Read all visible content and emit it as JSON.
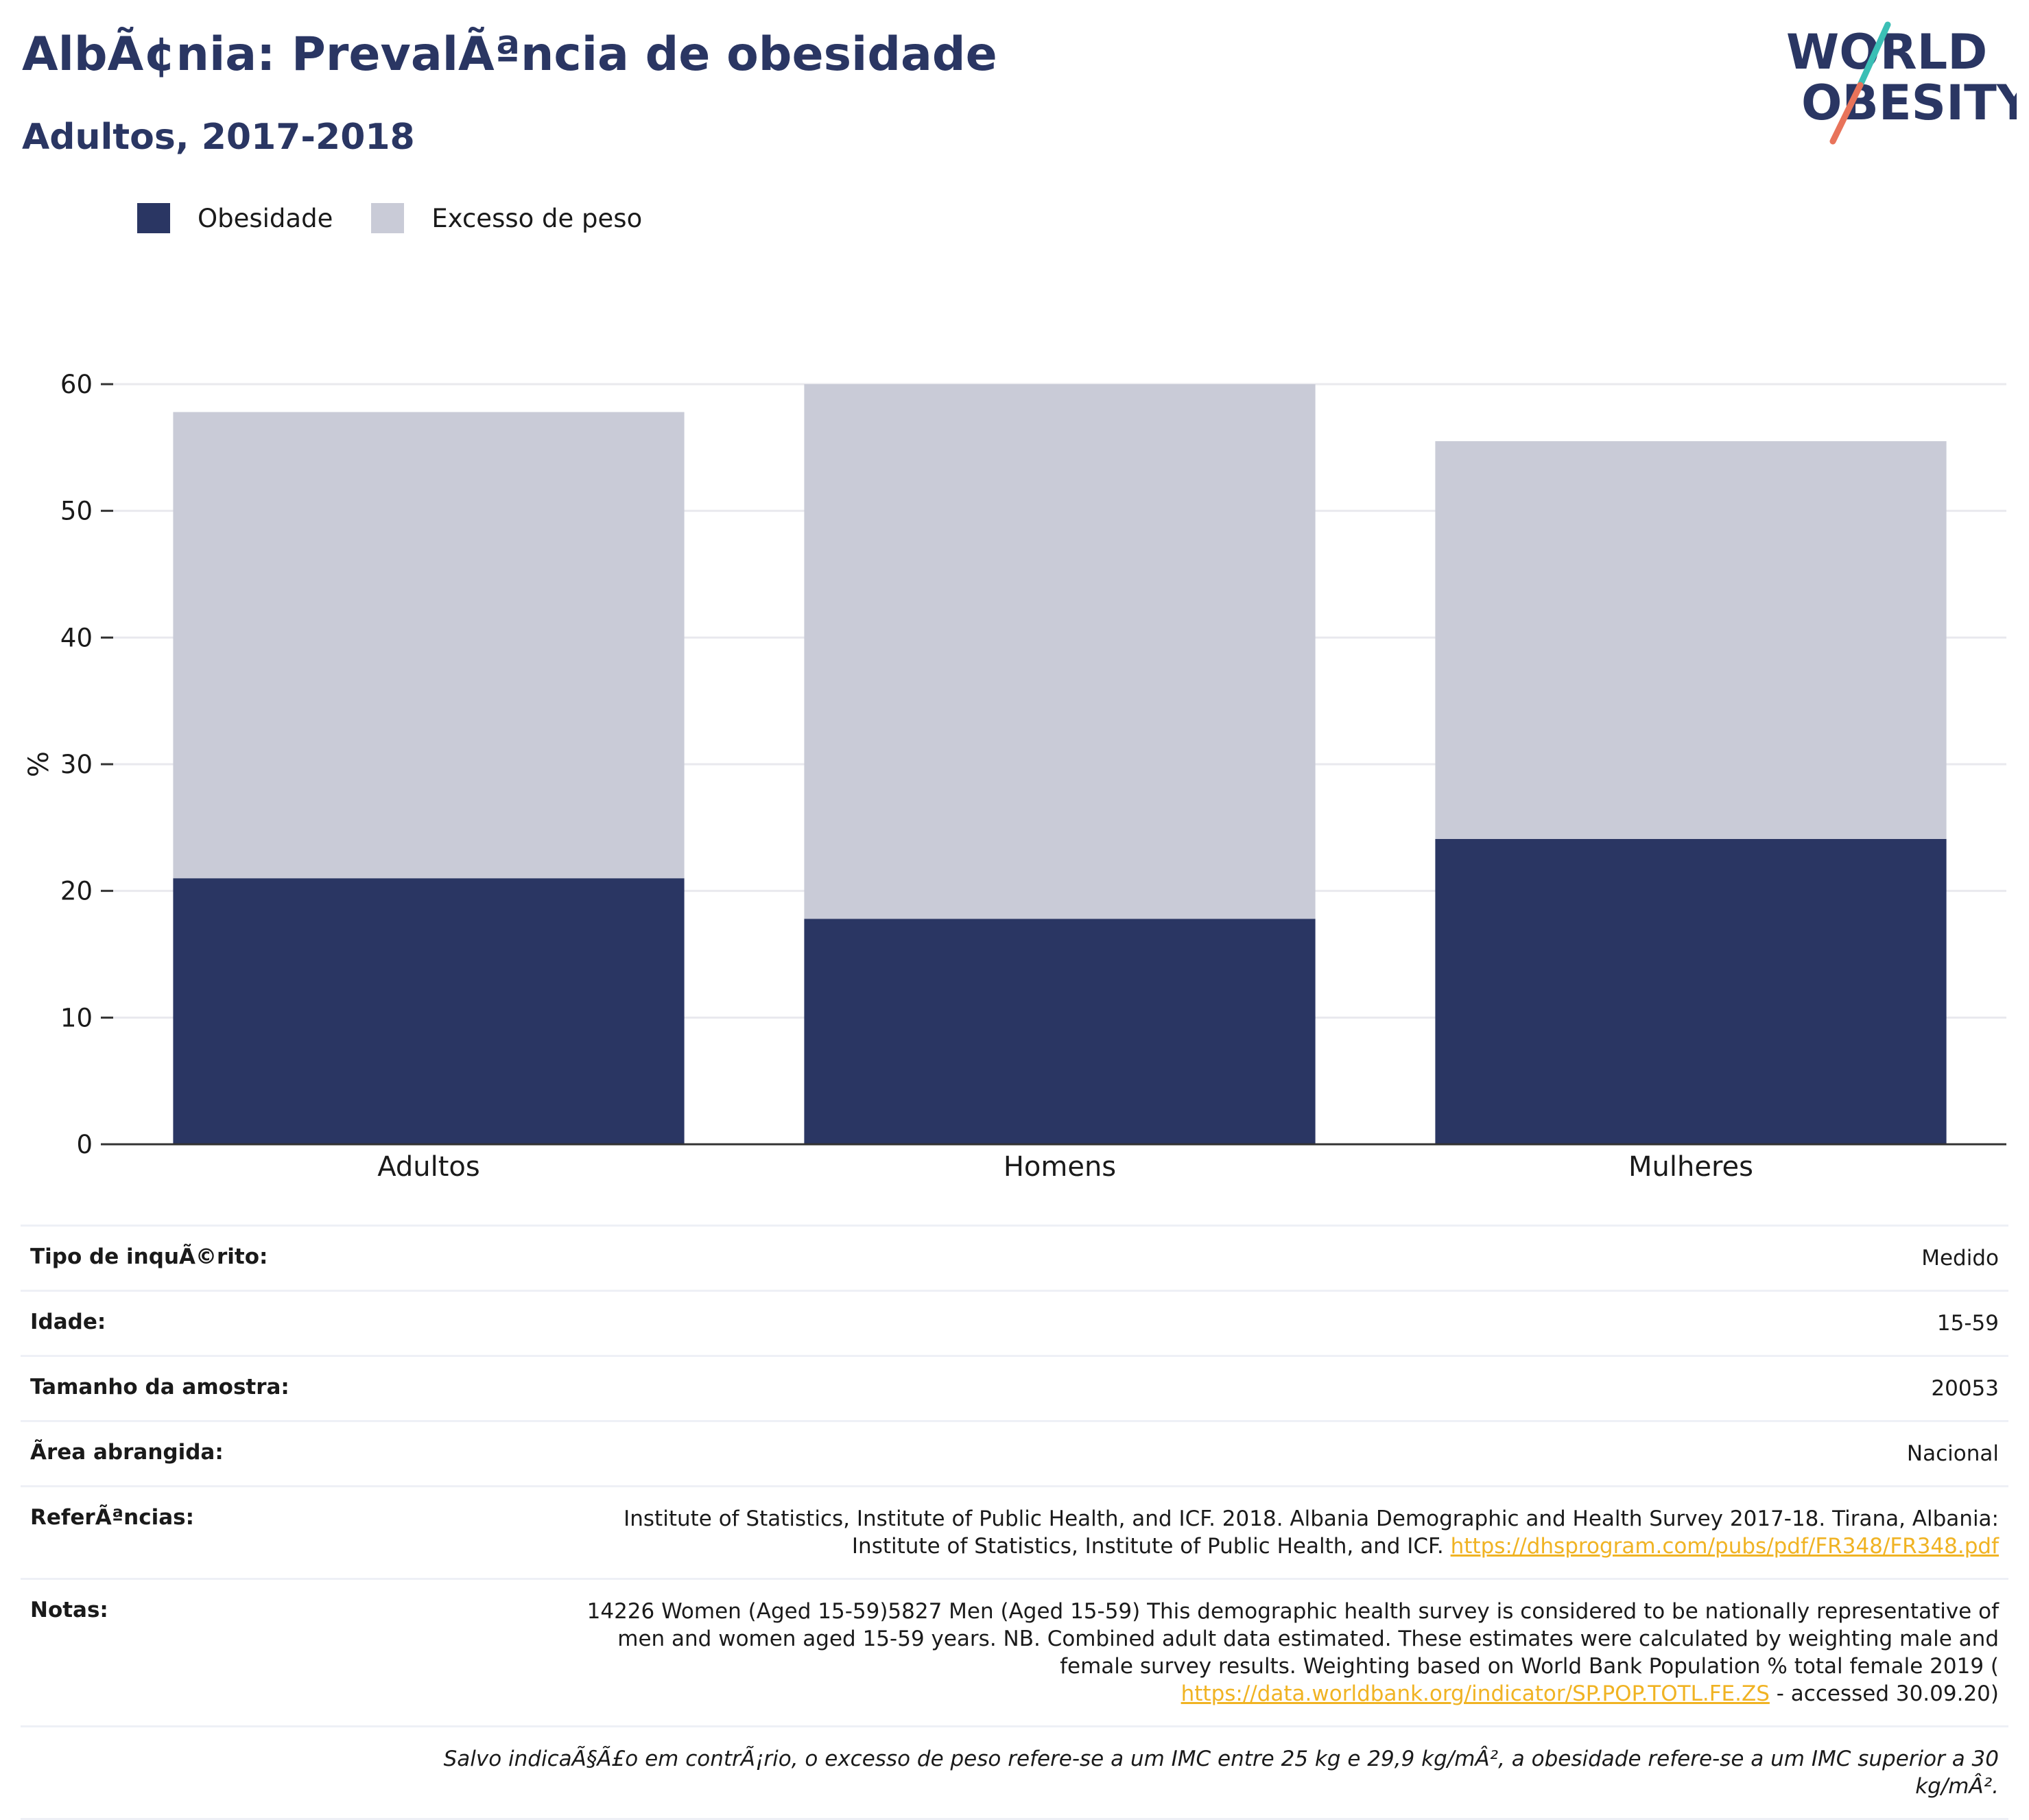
{
  "title": "AlbÃ¢nia: PrevalÃªncia de obesidade",
  "subtitle": "Adultos, 2017-2018",
  "logo": {
    "line1": "WORLD",
    "line2": "OBESITY",
    "colors": {
      "text": "#2a3663",
      "slash_top": "#3bbfb5",
      "slash_bottom": "#e8735a"
    }
  },
  "colors": {
    "obesity": "#2a3663",
    "overweight": "#c9cbd7",
    "grid": "#e9e9ee",
    "axis": "#333333"
  },
  "chart_data": {
    "type": "bar",
    "stacked": true,
    "categories": [
      "Adultos",
      "Homens",
      "Mulheres"
    ],
    "series": [
      {
        "name": "Obesidade",
        "values": [
          21.0,
          17.8,
          24.1
        ]
      },
      {
        "name": "Excesso de peso",
        "values": [
          36.8,
          42.2,
          31.4
        ]
      }
    ],
    "ylabel": "%",
    "ylim": [
      0,
      60
    ],
    "yticks": [
      0,
      10,
      20,
      30,
      40,
      50,
      60
    ],
    "grid": true,
    "legend": "top-left"
  },
  "info": {
    "rows": [
      {
        "key": "Tipo de inquÃ©rito:",
        "value": "Medido"
      },
      {
        "key": "Idade:",
        "value": "15-59"
      },
      {
        "key": "Tamanho da amostra:",
        "value": "20053"
      },
      {
        "key": "Ãrea abrangida:",
        "value": "Nacional"
      }
    ],
    "references": {
      "key": "ReferÃªncias:",
      "line1": "Institute of Statistics, Institute of Public Health, and ICF. 2018. Albania Demographic and Health Survey 2017-18. Tirana, Albania:",
      "line2": "Institute of Statistics, Institute of Public Health, and ICF.",
      "link": "https://dhsprogram.com/pubs/pdf/FR348/FR348.pdf"
    },
    "notes": {
      "key": "Notas:",
      "line1": "14226 Women (Aged 15-59)5827 Men (Aged 15-59) This demographic health survey is considered to be nationally representative of",
      "line2": "men and women aged 15-59 years. NB. Combined adult data estimated. These estimates were calculated by weighting male and",
      "line3": "female survey results. Weighting based on World Bank Population % total female 2019 (",
      "link": "https://data.worldbank.org/indicator/SP.POP.TOTL.FE.ZS",
      "suffix": " - accessed 30.09.20)"
    },
    "footnote": "Salvo indicaÃ§Ã£o em contrÃ¡rio, o excesso de peso refere-se a um IMC entre 25 kg e 29,9 kg/mÂ², a obesidade refere-se a um IMC superior a 30 kg/mÂ²."
  }
}
